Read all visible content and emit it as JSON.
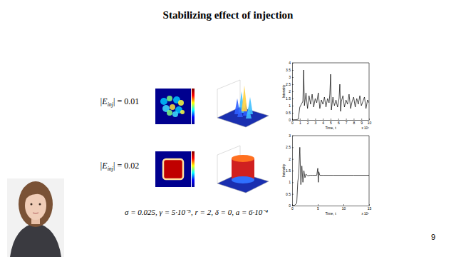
{
  "slide": {
    "title": "Stabilizing effect of injection",
    "rows": [
      {
        "label_prefix": "|E",
        "label_subscript": "inj",
        "label_suffix": "| = 0.01"
      },
      {
        "label_prefix": "|E",
        "label_subscript": "inj",
        "label_suffix": "| = 0.02"
      }
    ],
    "parameters": "σ = 0.025, γ = 5·10⁻⁵, r = 2, δ = 0, a = 6·10⁻⁴",
    "page_number": 9
  },
  "chart_data": [
    {
      "type": "line",
      "xlabel": "Time, t",
      "ylabel": "Intensity",
      "annotation": "x 10⁴",
      "x": [
        0,
        0.5,
        0.8,
        1.0,
        1.2,
        1.4,
        1.5,
        1.6,
        1.8,
        2.0,
        2.2,
        2.4,
        2.6,
        2.8,
        3.0,
        3.2,
        3.4,
        3.6,
        3.8,
        4.0,
        4.2,
        4.4,
        4.6,
        4.8,
        4.9,
        5.0,
        5.1,
        5.3,
        5.5,
        5.7,
        5.9,
        6.1,
        6.2,
        6.3,
        6.4,
        6.6,
        6.8,
        7.0,
        7.2,
        7.4,
        7.6,
        7.8,
        8.0,
        8.2,
        8.4,
        8.6,
        8.8,
        9.0,
        9.2,
        9.4,
        9.6,
        9.8,
        10.0
      ],
      "values": [
        0,
        0.02,
        0.05,
        0.9,
        1.1,
        1.3,
        3.5,
        1.0,
        1.9,
        0.8,
        1.7,
        1.1,
        1.8,
        0.9,
        1.5,
        1.2,
        1.9,
        0.8,
        1.4,
        1.1,
        1.6,
        0.9,
        1.5,
        1.2,
        1.8,
        3.2,
        0.7,
        1.6,
        1.0,
        1.4,
        0.9,
        1.5,
        2.5,
        0.6,
        1.3,
        1.7,
        0.9,
        1.4,
        1.1,
        1.8,
        0.8,
        1.3,
        1.6,
        0.9,
        1.5,
        1.1,
        1.7,
        1.0,
        1.3,
        1.6,
        0.8,
        1.4,
        1.2
      ],
      "color": "#000000",
      "xlim": [
        0,
        10
      ],
      "xticks": [
        0,
        1,
        2,
        3,
        4,
        5,
        6,
        7,
        8,
        9,
        10
      ],
      "ylim": [
        0,
        4
      ],
      "yticks": [
        0,
        0.5,
        1,
        1.5,
        2,
        2.5,
        3,
        3.5,
        4
      ]
    },
    {
      "type": "line",
      "xlabel": "Time, t",
      "ylabel": "Intensity",
      "annotation": "x 10⁴",
      "x": [
        0,
        0.5,
        0.9,
        1.1,
        1.3,
        1.5,
        1.7,
        1.9,
        2.1,
        2.3,
        2.5,
        2.7,
        3.0,
        3.5,
        4.0,
        4.8,
        5.0,
        5.1,
        5.2,
        5.4,
        6,
        8,
        10,
        12,
        15
      ],
      "values": [
        0,
        0.02,
        0.1,
        1.0,
        1.4,
        2.5,
        0.9,
        1.7,
        1.0,
        1.5,
        1.2,
        1.35,
        1.28,
        1.3,
        1.3,
        1.3,
        1.6,
        1.0,
        1.45,
        1.3,
        1.3,
        1.3,
        1.3,
        1.3,
        1.3
      ],
      "color": "#000000",
      "xlim": [
        0,
        15
      ],
      "xticks": [
        0,
        5,
        10,
        15
      ],
      "ylim": [
        0,
        3
      ],
      "yticks": [
        0,
        0.5,
        1,
        1.5,
        2,
        2.5,
        3
      ]
    }
  ]
}
